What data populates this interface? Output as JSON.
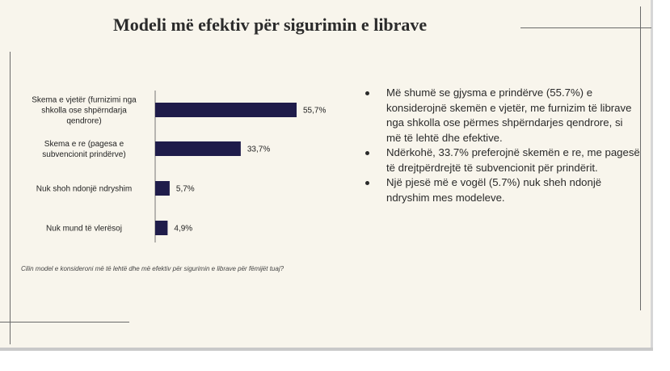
{
  "title": "Modeli më efektiv për sigurimin e librave",
  "question": "Cilin model e konsideroni më të lehtë dhe më efektiv për sigurimin e librave për fëmijët tuaj?",
  "colors": {
    "bar": "#1f1c4a",
    "background": "#f8f5ec"
  },
  "chart_data": {
    "type": "bar",
    "orientation": "horizontal",
    "categories": [
      [
        "Skema e vjetër (furnizimi nga",
        "shkolla ose shpërndarja",
        "qendrore)"
      ],
      [
        "Skema e re (pagesa e",
        "subvencionit prindërve)"
      ],
      [
        "Nuk shoh ndonjë ndryshim"
      ],
      [
        "Nuk mund të vlerësoj"
      ]
    ],
    "values": [
      55.7,
      33.7,
      5.7,
      4.9
    ],
    "value_labels": [
      "55,7%",
      "33,7%",
      "5,7%",
      "4,9%"
    ],
    "xlim": [
      0,
      100
    ],
    "grid": false,
    "legend": "none"
  },
  "bullets": [
    "Më shumë se gjysma e prindërve (55.7%) e konsiderojnë skemën e vjetër, me furnizim të librave nga shkolla ose përmes shpërndarjes qendrore, si më të lehtë dhe efektive.",
    "Ndërkohë, 33.7% preferojnë skemën e re, me pagesë të drejtpërdrejtë të subvencionit për prindërit.",
    "Një pjesë më e vogël (5.7%) nuk sheh ndonjë ndryshim mes modeleve."
  ]
}
